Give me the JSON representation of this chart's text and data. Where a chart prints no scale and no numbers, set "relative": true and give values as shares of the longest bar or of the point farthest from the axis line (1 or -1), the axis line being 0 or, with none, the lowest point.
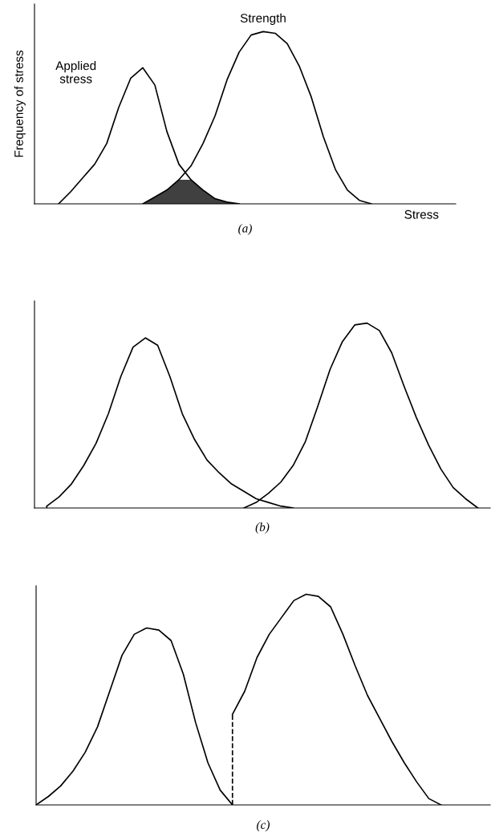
{
  "chart_data": [
    {
      "type": "line",
      "relative": true,
      "title": "(a)",
      "xlabel": "Stress",
      "ylabel": "Frequency of stress",
      "grid": false,
      "legend": false,
      "marker": "none",
      "line_style": "solid",
      "categories": [
        null,
        null,
        null,
        null,
        null,
        null,
        null,
        null,
        null,
        null,
        null,
        null,
        null,
        null,
        null,
        null,
        null,
        null,
        null,
        null,
        null,
        null,
        null,
        null,
        null,
        null,
        null,
        null,
        null,
        null,
        null,
        null,
        null,
        null,
        null,
        null
      ],
      "series": [
        {
          "name": "Applied\nstress",
          "color": "#000000",
          "values": [
            null,
            null,
            0.0,
            0.07,
            0.15,
            0.23,
            0.35,
            0.56,
            0.73,
            0.79,
            0.69,
            0.42,
            0.23,
            0.14,
            0.08,
            0.03,
            0.01,
            0.0,
            null,
            null,
            null,
            null,
            null,
            null,
            null,
            null,
            null,
            null,
            null,
            null,
            null,
            null,
            null,
            null,
            null,
            null
          ]
        },
        {
          "name": "Strength",
          "color": "#000000",
          "values": [
            null,
            null,
            null,
            null,
            null,
            null,
            null,
            null,
            null,
            0.0,
            0.04,
            0.08,
            0.14,
            0.22,
            0.35,
            0.51,
            0.72,
            0.88,
            0.98,
            1.0,
            0.99,
            0.93,
            0.8,
            0.62,
            0.39,
            0.2,
            0.08,
            0.02,
            0.0,
            null,
            null,
            null,
            null,
            null,
            null,
            null
          ]
        },
        {
          "type": "area",
          "color": "#404040",
          "values": [
            null,
            null,
            null,
            null,
            null,
            null,
            null,
            null,
            null,
            0.0,
            0.04,
            0.08,
            0.14,
            0.14,
            0.08,
            0.03,
            0.01,
            0.0,
            null,
            null,
            null,
            null,
            null,
            null,
            null,
            null,
            null,
            null,
            null,
            null,
            null,
            null,
            null,
            null,
            null,
            null
          ]
        }
      ]
    },
    {
      "type": "line",
      "relative": true,
      "title": "(b)",
      "grid": false,
      "legend": false,
      "marker": "none",
      "line_style": "solid",
      "categories": [
        null,
        null,
        null,
        null,
        null,
        null,
        null,
        null,
        null,
        null,
        null,
        null,
        null,
        null,
        null,
        null,
        null,
        null,
        null,
        null,
        null,
        null,
        null,
        null,
        null,
        null,
        null,
        null,
        null,
        null,
        null,
        null,
        null,
        null,
        null,
        null,
        null,
        null
      ],
      "series": [
        {
          "color": "#000000",
          "values": [
            null,
            0.01,
            0.06,
            0.13,
            0.23,
            0.35,
            0.51,
            0.71,
            0.87,
            0.92,
            0.88,
            0.71,
            0.51,
            0.37,
            0.26,
            0.19,
            0.13,
            0.09,
            0.05,
            0.03,
            0.01,
            0.0,
            null,
            null,
            null,
            null,
            null,
            null,
            null,
            null,
            null,
            null,
            null,
            null,
            null,
            null,
            null,
            null
          ]
        },
        {
          "color": "#000000",
          "values": [
            null,
            null,
            null,
            null,
            null,
            null,
            null,
            null,
            null,
            null,
            null,
            null,
            null,
            null,
            null,
            null,
            null,
            0.0,
            0.03,
            0.08,
            0.14,
            0.23,
            0.36,
            0.55,
            0.75,
            0.9,
            0.99,
            1.0,
            0.96,
            0.84,
            0.66,
            0.49,
            0.34,
            0.21,
            0.11,
            0.05,
            0.0,
            null
          ]
        }
      ]
    },
    {
      "type": "line",
      "relative": true,
      "title": "(c)",
      "grid": false,
      "legend": false,
      "marker": "none",
      "line_style": "solid",
      "categories": [
        null,
        null,
        null,
        null,
        null,
        null,
        null,
        null,
        null,
        null,
        null,
        null,
        null,
        null,
        null,
        null,
        null,
        null,
        null,
        null,
        null,
        null,
        null,
        null,
        null,
        null,
        null,
        null,
        null,
        null,
        null,
        null,
        null,
        null,
        null,
        null,
        null,
        null
      ],
      "series": [
        {
          "color": "#000000",
          "values": [
            0.0,
            0.04,
            0.09,
            0.16,
            0.25,
            0.37,
            0.54,
            0.71,
            0.81,
            0.84,
            0.83,
            0.78,
            0.62,
            0.39,
            0.2,
            0.07,
            0.0,
            null,
            null,
            null,
            null,
            null,
            null,
            null,
            null,
            null,
            null,
            null,
            null,
            null,
            null,
            null,
            null,
            null,
            null,
            null,
            null,
            null
          ]
        },
        {
          "color": "#000000",
          "values": [
            null,
            null,
            null,
            null,
            null,
            null,
            null,
            null,
            null,
            null,
            null,
            null,
            null,
            null,
            null,
            null,
            0.43,
            0.54,
            0.7,
            0.81,
            0.89,
            0.97,
            1.0,
            0.99,
            0.94,
            0.81,
            0.66,
            0.52,
            0.41,
            0.3,
            0.2,
            0.11,
            0.03,
            0.0,
            null,
            null,
            null,
            null
          ]
        }
      ]
    }
  ]
}
